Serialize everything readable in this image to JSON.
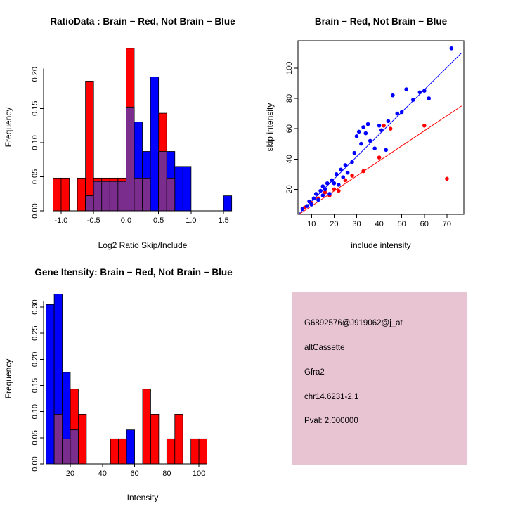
{
  "figure": {
    "background": "#ffffff",
    "colors": {
      "brain": "#FF0000",
      "not_brain": "#0000FF",
      "overlap": "#7B2D8E",
      "info_bg": "#E8C4D2",
      "pval": "#C00000"
    }
  },
  "chart_data": [
    {
      "id": "ratio_hist",
      "type": "bar",
      "subtype": "overlaid-histogram",
      "title": "RatioData : Brain − Red, Not Brain − Blue",
      "xlabel": "Log2 Ratio Skip/Include",
      "ylabel": "Frequency",
      "xlim": [
        -1.27,
        1.78
      ],
      "ylim": [
        0,
        0.245
      ],
      "xticks": [
        -1.0,
        -0.5,
        0.0,
        0.5,
        1.0,
        1.5
      ],
      "xtick_labels": [
        "-1.0",
        "-0.5",
        "0.0",
        "0.5",
        "1.0",
        "1.5"
      ],
      "yticks": [
        0,
        0.05,
        0.1,
        0.15,
        0.2
      ],
      "ytick_labels": [
        "0.00",
        "0.05",
        "0.10",
        "0.15",
        "0.20"
      ],
      "bin_start": -1.125,
      "bin_width": 0.125,
      "overlap_color": "#7B2D8E",
      "series": [
        {
          "name": "Brain",
          "color": "#FF0000",
          "values": [
            0.048,
            0.048,
            0,
            0.048,
            0.19,
            0.048,
            0.048,
            0.048,
            0.048,
            0.238,
            0.048,
            0.048,
            0,
            0.143,
            0.048,
            0,
            0,
            0,
            0,
            0,
            0,
            0
          ]
        },
        {
          "name": "Not Brain",
          "color": "#0000FF",
          "values": [
            0,
            0,
            0,
            0,
            0.022,
            0.043,
            0.043,
            0.043,
            0.043,
            0.152,
            0.13,
            0.087,
            0.196,
            0.087,
            0.087,
            0.065,
            0.065,
            0,
            0,
            0,
            0,
            0.022
          ]
        }
      ]
    },
    {
      "id": "scatter",
      "type": "scatter",
      "title": "Brain − Red, Not Brain − Blue",
      "xlabel": "include intensity",
      "ylabel": "skip intensity",
      "xlim": [
        4,
        77.5
      ],
      "ylim": [
        3.5,
        118
      ],
      "xticks": [
        10,
        20,
        30,
        40,
        50,
        60,
        70
      ],
      "yticks": [
        20,
        40,
        60,
        80,
        100
      ],
      "series": [
        {
          "name": "Brain",
          "color": "#FF0000",
          "points": [
            [
              7,
              8
            ],
            [
              10,
              11
            ],
            [
              13,
              14
            ],
            [
              16,
              18
            ],
            [
              18,
              16
            ],
            [
              20,
              20
            ],
            [
              22,
              19
            ],
            [
              25,
              26
            ],
            [
              28,
              29
            ],
            [
              33,
              32
            ],
            [
              40,
              41
            ],
            [
              42,
              62
            ],
            [
              45,
              60
            ],
            [
              60,
              62
            ],
            [
              70,
              27
            ]
          ]
        },
        {
          "name": "Not Brain",
          "color": "#0000FF",
          "points": [
            [
              6,
              7
            ],
            [
              8,
              9
            ],
            [
              9,
              12
            ],
            [
              10,
              10
            ],
            [
              11,
              14
            ],
            [
              12,
              17
            ],
            [
              13,
              13
            ],
            [
              14,
              19
            ],
            [
              15,
              16
            ],
            [
              15,
              22
            ],
            [
              16,
              20
            ],
            [
              17,
              24
            ],
            [
              18,
              17
            ],
            [
              19,
              26
            ],
            [
              20,
              24
            ],
            [
              21,
              30
            ],
            [
              22,
              23
            ],
            [
              23,
              33
            ],
            [
              24,
              28
            ],
            [
              25,
              36
            ],
            [
              26,
              31
            ],
            [
              28,
              38
            ],
            [
              29,
              44
            ],
            [
              30,
              55
            ],
            [
              31,
              58
            ],
            [
              32,
              50
            ],
            [
              33,
              61
            ],
            [
              34,
              57
            ],
            [
              35,
              63
            ],
            [
              36,
              52
            ],
            [
              38,
              47
            ],
            [
              40,
              62
            ],
            [
              41,
              59
            ],
            [
              43,
              46
            ],
            [
              44,
              65
            ],
            [
              46,
              82
            ],
            [
              48,
              70
            ],
            [
              50,
              71
            ],
            [
              52,
              86
            ],
            [
              55,
              79
            ],
            [
              58,
              84
            ],
            [
              60,
              85
            ],
            [
              62,
              80
            ],
            [
              72,
              113
            ]
          ]
        }
      ],
      "lines": [
        {
          "name": "not-brain-fit",
          "color": "#0000FF",
          "x1": 4.5,
          "y1": 4,
          "x2": 76.5,
          "y2": 110
        },
        {
          "name": "brain-fit",
          "color": "#FF0000",
          "x1": 4.5,
          "y1": 3.5,
          "x2": 76.5,
          "y2": 75
        }
      ]
    },
    {
      "id": "intensity_hist",
      "type": "bar",
      "subtype": "overlaid-histogram",
      "title": "Gene Itensity: Brain − Red, Not Brain − Blue",
      "xlabel": "Intensity",
      "ylabel": "Frequency",
      "xlim": [
        3.4,
        126.6
      ],
      "ylim": [
        0,
        0.3256
      ],
      "xticks": [
        20,
        40,
        60,
        80,
        100
      ],
      "xtick_labels": [
        "20",
        "40",
        "60",
        "80",
        "100"
      ],
      "yticks": [
        0,
        0.05,
        0.1,
        0.15,
        0.2,
        0.25,
        0.3
      ],
      "ytick_labels": [
        "0.00",
        "0.05",
        "0.10",
        "0.15",
        "0.20",
        "0.25",
        "0.30"
      ],
      "bin_start": 5,
      "bin_width": 5,
      "overlap_color": "#7B2D8E",
      "series": [
        {
          "name": "Brain",
          "color": "#FF0000",
          "values": [
            0,
            0.095,
            0.048,
            0.143,
            0.095,
            0,
            0,
            0,
            0.048,
            0.048,
            0,
            0,
            0.143,
            0.095,
            0,
            0.048,
            0.095,
            0,
            0.048,
            0.048
          ]
        },
        {
          "name": "Not Brain",
          "color": "#0000FF",
          "values": [
            0.305,
            0.325,
            0.175,
            0.065,
            0,
            0,
            0,
            0,
            0,
            0,
            0.065,
            0,
            0,
            0,
            0,
            0,
            0,
            0,
            0,
            0
          ]
        }
      ]
    }
  ],
  "panels": {
    "info": {
      "bg_color": "#E8C4D2",
      "lines": [
        {
          "text": "G6892576@J919062@j_at",
          "color": "#000000"
        },
        {
          "text": "altCassette",
          "color": "#000000"
        },
        {
          "text": "Gfra2",
          "color": "#000000"
        },
        {
          "text": "chr14.6231-2.1",
          "color": "#000000"
        },
        {
          "text": "Pval: 2.000000",
          "color": "#C00000"
        }
      ]
    }
  }
}
